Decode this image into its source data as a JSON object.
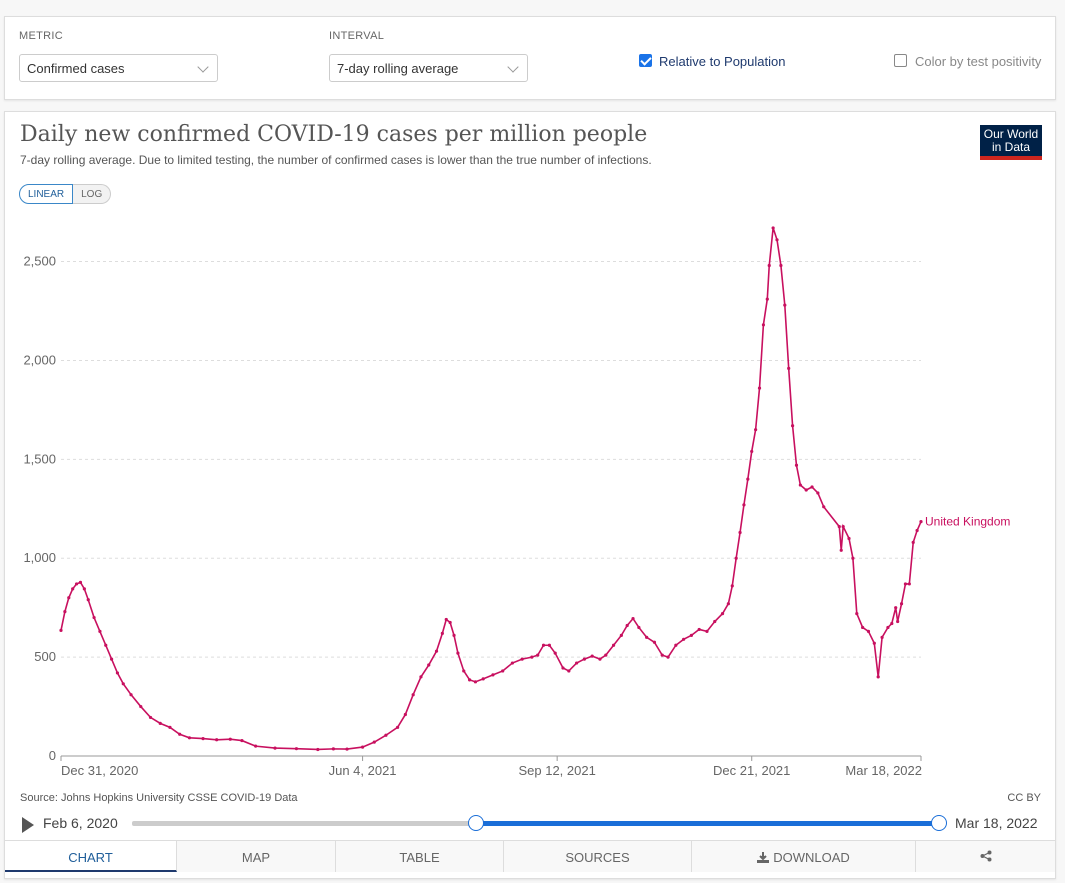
{
  "controls": {
    "metric_label": "METRIC",
    "metric_value": "Confirmed cases",
    "interval_label": "INTERVAL",
    "interval_value": "7-day rolling average",
    "relative_label": "Relative to Population",
    "relative_checked": true,
    "positivity_label": "Color by test positivity",
    "positivity_checked": false
  },
  "header": {
    "title": "Daily new confirmed COVID-19 cases per million people",
    "subtitle": "7-day rolling average. Due to limited testing, the number of confirmed cases is lower than the true number of infections.",
    "logo_line1": "Our World",
    "logo_line2": "in Data",
    "logo_color": "#002147",
    "logo_accent": "#ce261e"
  },
  "scale": {
    "linear": "LINEAR",
    "log": "LOG",
    "active": "LINEAR"
  },
  "footer": {
    "source": "Source: Johns Hopkins University CSSE COVID-19 Data",
    "license": "CC BY"
  },
  "timeline": {
    "start": "Feb 6, 2020",
    "end": "Mar 18, 2022",
    "range_start": "Dec 31, 2020",
    "range_end": "Mar 18, 2022"
  },
  "tabs": [
    {
      "label": "CHART",
      "icon": ""
    },
    {
      "label": "MAP",
      "icon": ""
    },
    {
      "label": "TABLE",
      "icon": ""
    },
    {
      "label": "SOURCES",
      "icon": ""
    },
    {
      "label": "DOWNLOAD",
      "icon": "download-icon"
    },
    {
      "label": "",
      "icon": "share-icon"
    }
  ],
  "chart_data": {
    "type": "line",
    "title": "Daily new confirmed COVID-19 cases per million people",
    "subtitle": "7-day rolling average. Due to limited testing, the number of confirmed cases is lower than the true number of infections.",
    "xlabel": "",
    "ylabel": "",
    "x_tick_labels": [
      "Dec 31, 2020",
      "Jun 4, 2021",
      "Sep 12, 2021",
      "Dec 21, 2021",
      "Mar 18, 2022"
    ],
    "x_tick_dates": [
      "2020-12-31",
      "2021-06-04",
      "2021-09-12",
      "2021-12-21",
      "2022-03-18"
    ],
    "y_ticks": [
      0,
      500,
      1000,
      1500,
      2000,
      2500
    ],
    "y_tick_labels": [
      "0",
      "500",
      "1,000",
      "1,500",
      "2,000",
      "2,500"
    ],
    "ylim": [
      0,
      2700
    ],
    "xlim": [
      "2020-12-31",
      "2022-03-18"
    ],
    "grid": true,
    "line_color": "#c8105f",
    "series": [
      {
        "name": "United Kingdom",
        "points": [
          [
            "2020-12-31",
            635
          ],
          [
            "2021-01-02",
            730
          ],
          [
            "2021-01-04",
            800
          ],
          [
            "2021-01-06",
            845
          ],
          [
            "2021-01-08",
            870
          ],
          [
            "2021-01-10",
            878
          ],
          [
            "2021-01-12",
            845
          ],
          [
            "2021-01-14",
            790
          ],
          [
            "2021-01-17",
            700
          ],
          [
            "2021-01-20",
            630
          ],
          [
            "2021-01-23",
            560
          ],
          [
            "2021-01-26",
            490
          ],
          [
            "2021-01-29",
            420
          ],
          [
            "2021-02-01",
            365
          ],
          [
            "2021-02-05",
            310
          ],
          [
            "2021-02-10",
            250
          ],
          [
            "2021-02-15",
            195
          ],
          [
            "2021-02-20",
            165
          ],
          [
            "2021-02-25",
            145
          ],
          [
            "2021-03-02",
            110
          ],
          [
            "2021-03-07",
            92
          ],
          [
            "2021-03-14",
            88
          ],
          [
            "2021-03-21",
            82
          ],
          [
            "2021-03-28",
            85
          ],
          [
            "2021-04-03",
            78
          ],
          [
            "2021-04-10",
            50
          ],
          [
            "2021-04-20",
            40
          ],
          [
            "2021-05-01",
            37
          ],
          [
            "2021-05-12",
            33
          ],
          [
            "2021-05-20",
            36
          ],
          [
            "2021-05-27",
            35
          ],
          [
            "2021-06-04",
            45
          ],
          [
            "2021-06-10",
            70
          ],
          [
            "2021-06-16",
            105
          ],
          [
            "2021-06-22",
            145
          ],
          [
            "2021-06-26",
            210
          ],
          [
            "2021-06-30",
            310
          ],
          [
            "2021-07-04",
            400
          ],
          [
            "2021-07-08",
            460
          ],
          [
            "2021-07-12",
            530
          ],
          [
            "2021-07-15",
            620
          ],
          [
            "2021-07-17",
            690
          ],
          [
            "2021-07-19",
            675
          ],
          [
            "2021-07-21",
            610
          ],
          [
            "2021-07-23",
            520
          ],
          [
            "2021-07-26",
            430
          ],
          [
            "2021-07-29",
            385
          ],
          [
            "2021-08-01",
            375
          ],
          [
            "2021-08-05",
            390
          ],
          [
            "2021-08-10",
            410
          ],
          [
            "2021-08-15",
            430
          ],
          [
            "2021-08-20",
            470
          ],
          [
            "2021-08-25",
            490
          ],
          [
            "2021-08-30",
            500
          ],
          [
            "2021-09-02",
            510
          ],
          [
            "2021-09-05",
            560
          ],
          [
            "2021-09-08",
            560
          ],
          [
            "2021-09-11",
            520
          ],
          [
            "2021-09-15",
            445
          ],
          [
            "2021-09-18",
            430
          ],
          [
            "2021-09-22",
            470
          ],
          [
            "2021-09-26",
            490
          ],
          [
            "2021-09-30",
            505
          ],
          [
            "2021-10-04",
            490
          ],
          [
            "2021-10-07",
            510
          ],
          [
            "2021-10-11",
            560
          ],
          [
            "2021-10-15",
            610
          ],
          [
            "2021-10-18",
            660
          ],
          [
            "2021-10-21",
            695
          ],
          [
            "2021-10-24",
            650
          ],
          [
            "2021-10-28",
            600
          ],
          [
            "2021-11-01",
            575
          ],
          [
            "2021-11-05",
            510
          ],
          [
            "2021-11-08",
            500
          ],
          [
            "2021-11-12",
            560
          ],
          [
            "2021-11-16",
            590
          ],
          [
            "2021-11-20",
            610
          ],
          [
            "2021-11-24",
            640
          ],
          [
            "2021-11-28",
            630
          ],
          [
            "2021-12-02",
            680
          ],
          [
            "2021-12-06",
            720
          ],
          [
            "2021-12-09",
            770
          ],
          [
            "2021-12-11",
            860
          ],
          [
            "2021-12-13",
            1000
          ],
          [
            "2021-12-15",
            1130
          ],
          [
            "2021-12-17",
            1270
          ],
          [
            "2021-12-19",
            1400
          ],
          [
            "2021-12-21",
            1540
          ],
          [
            "2021-12-23",
            1650
          ],
          [
            "2021-12-25",
            1860
          ],
          [
            "2021-12-27",
            2180
          ],
          [
            "2021-12-29",
            2310
          ],
          [
            "2021-12-30",
            2480
          ],
          [
            "2022-01-01",
            2670
          ],
          [
            "2022-01-03",
            2610
          ],
          [
            "2022-01-05",
            2480
          ],
          [
            "2022-01-07",
            2280
          ],
          [
            "2022-01-09",
            1960
          ],
          [
            "2022-01-11",
            1670
          ],
          [
            "2022-01-13",
            1470
          ],
          [
            "2022-01-15",
            1370
          ],
          [
            "2022-01-18",
            1345
          ],
          [
            "2022-01-21",
            1360
          ],
          [
            "2022-01-24",
            1330
          ],
          [
            "2022-01-27",
            1260
          ],
          [
            "2022-02-04",
            1160
          ],
          [
            "2022-02-05",
            1040
          ],
          [
            "2022-02-06",
            1160
          ],
          [
            "2022-02-09",
            1100
          ],
          [
            "2022-02-11",
            1000
          ],
          [
            "2022-02-13",
            720
          ],
          [
            "2022-02-16",
            650
          ],
          [
            "2022-02-19",
            630
          ],
          [
            "2022-02-22",
            570
          ],
          [
            "2022-02-24",
            400
          ],
          [
            "2022-02-26",
            600
          ],
          [
            "2022-03-01",
            650
          ],
          [
            "2022-03-03",
            670
          ],
          [
            "2022-03-05",
            750
          ],
          [
            "2022-03-06",
            680
          ],
          [
            "2022-03-08",
            770
          ],
          [
            "2022-03-10",
            870
          ],
          [
            "2022-03-12",
            870
          ],
          [
            "2022-03-14",
            1080
          ],
          [
            "2022-03-16",
            1140
          ],
          [
            "2022-03-18",
            1185
          ]
        ]
      }
    ]
  }
}
